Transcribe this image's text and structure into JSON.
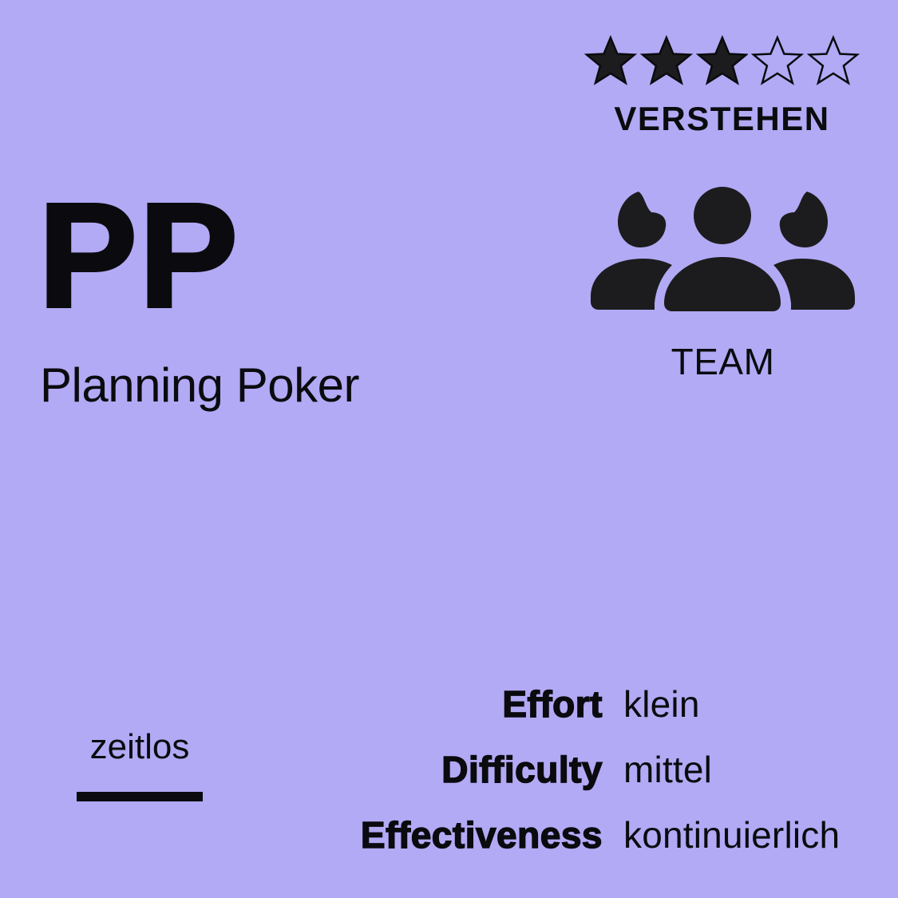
{
  "rating": {
    "value": 3,
    "max": 5,
    "label": "VERSTEHEN",
    "icon": "star-icon"
  },
  "method": {
    "abbreviation": "PP",
    "name": "Planning Poker"
  },
  "audience": {
    "icon": "team-icon",
    "label": "TEAM"
  },
  "timing": {
    "label": "zeitlos"
  },
  "attributes": [
    {
      "key": "Effort",
      "value": "klein"
    },
    {
      "key": "Difficulty",
      "value": "mittel"
    },
    {
      "key": "Effectiveness",
      "value": "kontinuierlich"
    }
  ],
  "colors": {
    "background": "#b2aaf5",
    "foreground": "#0b0b0f",
    "star_filled": "#1c1c1e"
  }
}
